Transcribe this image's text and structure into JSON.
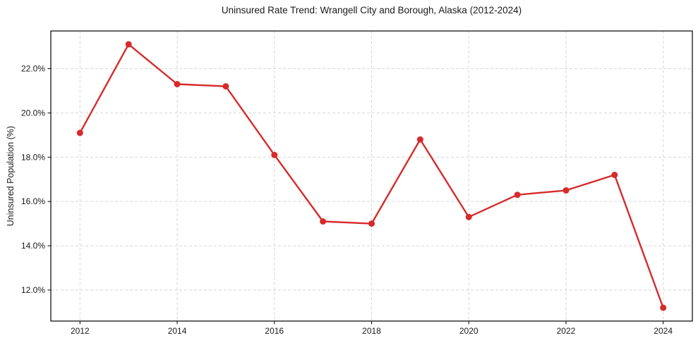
{
  "page": {
    "background": "#ffffff"
  },
  "chart_data": {
    "type": "line",
    "title": "Uninsured Rate Trend: Wrangell City and Borough, Alaska (2012-2024)",
    "xlabel": "",
    "ylabel": "Uninsured Population (%)",
    "x": [
      2012,
      2013,
      2014,
      2015,
      2016,
      2017,
      2018,
      2019,
      2020,
      2021,
      2022,
      2023,
      2024
    ],
    "series": [
      {
        "name": "Uninsured Population (%)",
        "values": [
          19.1,
          23.1,
          21.3,
          21.2,
          18.1,
          15.1,
          15.0,
          18.8,
          15.3,
          16.3,
          16.5,
          17.2,
          11.2
        ]
      }
    ],
    "xticks": [
      2012,
      2014,
      2016,
      2018,
      2020,
      2022,
      2024
    ],
    "xtick_labels": [
      "2012",
      "2014",
      "2016",
      "2018",
      "2020",
      "2022",
      "2024"
    ],
    "yticks": [
      12,
      14,
      16,
      18,
      20,
      22
    ],
    "ytick_labels": [
      "12.0%",
      "14.0%",
      "16.0%",
      "18.0%",
      "20.0%",
      "22.0%"
    ],
    "xlim": [
      2011.4,
      2024.6
    ],
    "ylim": [
      10.6,
      23.7
    ],
    "grid": true,
    "grid_style": "dashed",
    "legend": "none",
    "line_color": "#d62b2b",
    "marker": "circle",
    "grid_color": "#d6d6d6",
    "axis_color": "#000000",
    "text_color": "#1a1a1a"
  }
}
